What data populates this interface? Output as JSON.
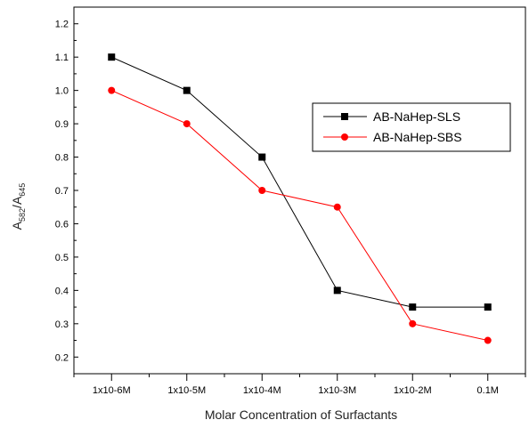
{
  "chart_data": {
    "type": "line",
    "categories": [
      "1x10-6M",
      "1x10-5M",
      "1x10-4M",
      "1x10-3M",
      "1x10-2M",
      "0.1M"
    ],
    "series": [
      {
        "name": "AB-NaHep-SLS",
        "color": "#000000",
        "marker": "square",
        "values": [
          1.1,
          1.0,
          0.8,
          0.4,
          0.35,
          0.35
        ]
      },
      {
        "name": "AB-NaHep-SBS",
        "color": "#ff0000",
        "marker": "circle",
        "values": [
          1.0,
          0.9,
          0.7,
          0.65,
          0.3,
          0.25
        ]
      }
    ],
    "title": "",
    "xlabel": "Molar Concentration of Surfactants",
    "ylabel": {
      "main": "A",
      "sub1": "582",
      "sep": "/A",
      "sub2": "645"
    },
    "ylim": [
      0.15,
      1.25
    ],
    "yticks": [
      "0.2",
      "0.3",
      "0.4",
      "0.5",
      "0.6",
      "0.7",
      "0.8",
      "0.9",
      "1.0",
      "1.1",
      "1.2"
    ],
    "grid": false,
    "legend_position": "upper-right"
  }
}
